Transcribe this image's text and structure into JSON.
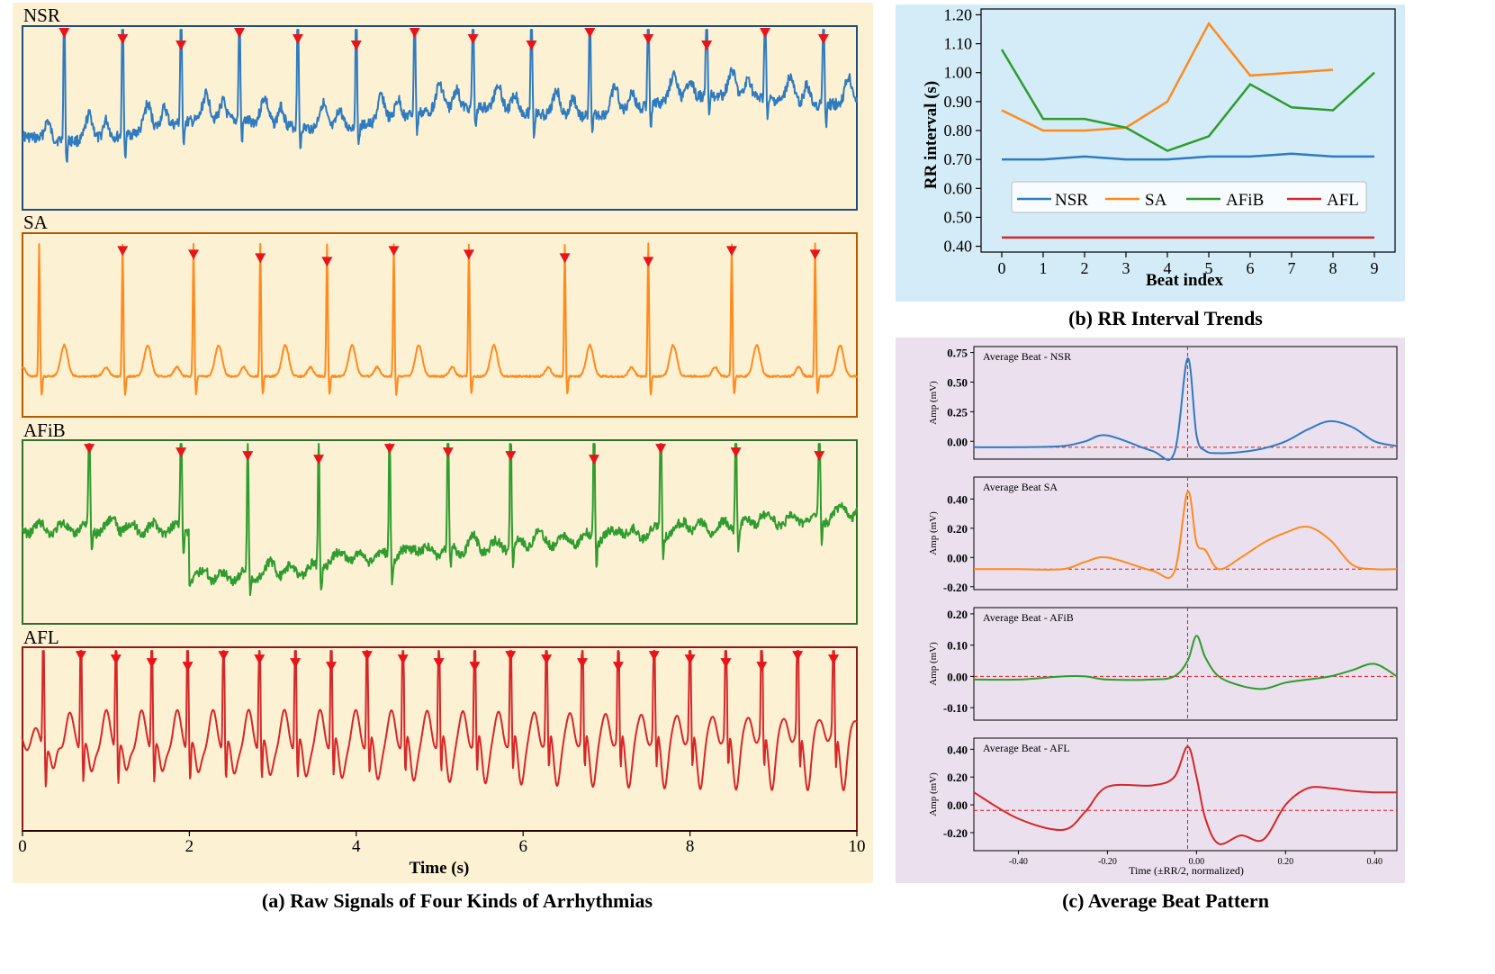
{
  "colors": {
    "panel_a_bg": "#fdf1d3",
    "panel_b_bg": "#d3ecf7",
    "panel_c_bg": "#eae0ee",
    "NSR": "#2f7bbf",
    "SA": "#ff8a1d",
    "AFiB": "#2e9c2e",
    "AFL": "#d62728",
    "marker": "#e8141a",
    "nsr_box": "#1f4e79",
    "sa_box": "#b35a00",
    "afib_box": "#2f6f2f",
    "afl_box": "#8b1a1a",
    "ref_line": "#e8141a"
  },
  "panel_a": {
    "caption": "(a) Raw Signals of Four Kinds of Arrhythmias",
    "xlabel": "Time (s)",
    "xticks": [
      "0",
      "2",
      "4",
      "6",
      "8",
      "10"
    ],
    "rows": [
      {
        "label": "NSR",
        "key": "NSR"
      },
      {
        "label": "SA",
        "key": "SA"
      },
      {
        "label": "AFiB",
        "key": "AFiB"
      },
      {
        "label": "AFL",
        "key": "AFL"
      }
    ]
  },
  "panel_b": {
    "caption": "(b) RR Interval Trends",
    "xlabel": "Beat index",
    "ylabel": "RR interval (s)",
    "yticks": [
      "0.40",
      "0.50",
      "0.60",
      "0.70",
      "0.80",
      "0.90",
      "1.00",
      "1.10",
      "1.20"
    ],
    "xticks": [
      "0",
      "1",
      "2",
      "3",
      "4",
      "5",
      "6",
      "7",
      "8",
      "9"
    ],
    "legend": [
      "NSR",
      "SA",
      "AFiB",
      "AFL"
    ]
  },
  "panel_c": {
    "caption": "(c) Average Beat Pattern",
    "xlabel": "Time (±RR/2, normalized)",
    "ylabel": "Amp (mV)",
    "xticks": [
      "-0.40",
      "-0.20",
      "0.00",
      "0.20",
      "0.40"
    ],
    "subplots": [
      {
        "title": "Average Beat - NSR",
        "key": "NSR",
        "yticks": [
          "0.75",
          "0.50",
          "0.25",
          "0.00"
        ]
      },
      {
        "title": "Average Beat   SA",
        "key": "SA",
        "yticks": [
          "0.40",
          "0.20",
          "0.00",
          "-0.20"
        ]
      },
      {
        "title": "Average Beat - AFiB",
        "key": "AFiB",
        "yticks": [
          "0.20",
          "0.10",
          "0.00",
          "-0.10"
        ]
      },
      {
        "title": "Average Beat - AFL",
        "key": "AFL",
        "yticks": [
          "0.40",
          "0.20",
          "0.00",
          "-0.20"
        ]
      }
    ]
  },
  "chart_data": [
    {
      "type": "line",
      "title": "Raw Signals of Four Kinds of Arrhythmias",
      "xlabel": "Time (s)",
      "xlim": [
        0,
        10
      ],
      "series": [
        {
          "name": "NSR",
          "r_peaks_s": [
            0.5,
            1.2,
            1.9,
            2.6,
            3.3,
            4.0,
            4.7,
            5.4,
            6.1,
            6.8,
            7.5,
            8.2,
            8.9,
            9.6
          ]
        },
        {
          "name": "SA",
          "r_peaks_s": [
            0.2,
            1.2,
            2.05,
            2.85,
            3.65,
            4.45,
            5.35,
            6.5,
            7.5,
            8.5,
            9.5
          ]
        },
        {
          "name": "AFiB",
          "r_peaks_s": [
            0.8,
            1.9,
            2.7,
            3.55,
            4.4,
            5.1,
            5.85,
            6.85,
            7.65,
            8.55,
            9.55
          ]
        },
        {
          "name": "AFL",
          "r_peaks_s": [
            0.25,
            0.7,
            1.12,
            1.55,
            1.98,
            2.41,
            2.84,
            3.27,
            3.7,
            4.13,
            4.56,
            4.99,
            5.42,
            5.85,
            6.28,
            6.71,
            7.14,
            7.57,
            8.0,
            8.43,
            8.86,
            9.29,
            9.72
          ]
        }
      ]
    },
    {
      "type": "line",
      "title": "RR Interval Trends",
      "xlabel": "Beat index",
      "ylabel": "RR interval (s)",
      "ylim": [
        0.38,
        1.22
      ],
      "xlim": [
        -0.5,
        9.5
      ],
      "x": [
        0,
        1,
        2,
        3,
        4,
        5,
        6,
        7,
        8,
        9
      ],
      "series": [
        {
          "name": "NSR",
          "values": [
            0.7,
            0.7,
            0.71,
            0.7,
            0.7,
            0.71,
            0.71,
            0.72,
            0.71,
            0.71
          ]
        },
        {
          "name": "SA",
          "values": [
            0.87,
            0.8,
            0.8,
            0.81,
            0.9,
            1.17,
            0.99,
            1.0,
            1.01,
            null
          ]
        },
        {
          "name": "AFiB",
          "values": [
            1.08,
            0.84,
            0.84,
            0.81,
            0.73,
            0.78,
            0.96,
            0.88,
            0.87,
            1.0
          ]
        },
        {
          "name": "AFL",
          "values": [
            0.43,
            0.43,
            0.43,
            0.43,
            0.43,
            0.43,
            0.43,
            0.43,
            0.43,
            0.43
          ]
        }
      ],
      "legend_position": "center"
    },
    {
      "type": "line",
      "title": "Average Beat Pattern",
      "xlabel": "Time (±RR/2, normalized)",
      "ylabel": "Amp (mV)",
      "xlim": [
        -0.5,
        0.45
      ],
      "x": [
        -0.5,
        -0.4,
        -0.3,
        -0.25,
        -0.2,
        -0.1,
        -0.05,
        -0.02,
        0.0,
        0.02,
        0.05,
        0.1,
        0.15,
        0.2,
        0.25,
        0.3,
        0.35,
        0.4,
        0.45
      ],
      "series": [
        {
          "name": "NSR",
          "ylim": [
            -0.15,
            0.8
          ],
          "values": [
            -0.05,
            -0.05,
            -0.04,
            0.0,
            0.05,
            -0.08,
            -0.1,
            0.7,
            0.05,
            -0.08,
            -0.1,
            -0.09,
            -0.06,
            0.0,
            0.1,
            0.17,
            0.12,
            0.0,
            -0.04
          ]
        },
        {
          "name": "SA",
          "ylim": [
            -0.22,
            0.55
          ],
          "values": [
            -0.08,
            -0.08,
            -0.08,
            -0.03,
            0.0,
            -0.09,
            -0.1,
            0.45,
            0.1,
            0.05,
            -0.08,
            0.0,
            0.1,
            0.17,
            0.21,
            0.12,
            -0.05,
            -0.08,
            -0.08
          ]
        },
        {
          "name": "AFiB",
          "ylim": [
            -0.14,
            0.22
          ],
          "values": [
            -0.01,
            -0.01,
            0.0,
            0.0,
            -0.01,
            -0.01,
            0.0,
            0.05,
            0.13,
            0.06,
            0.0,
            -0.03,
            -0.04,
            -0.02,
            -0.01,
            0.0,
            0.02,
            0.04,
            0.0
          ]
        },
        {
          "name": "AFL",
          "ylim": [
            -0.33,
            0.48
          ],
          "values": [
            0.09,
            -0.1,
            -0.18,
            -0.05,
            0.13,
            0.14,
            0.2,
            0.42,
            0.2,
            -0.1,
            -0.28,
            -0.22,
            -0.25,
            0.0,
            0.12,
            0.12,
            0.1,
            0.09,
            0.09
          ]
        }
      ]
    }
  ]
}
